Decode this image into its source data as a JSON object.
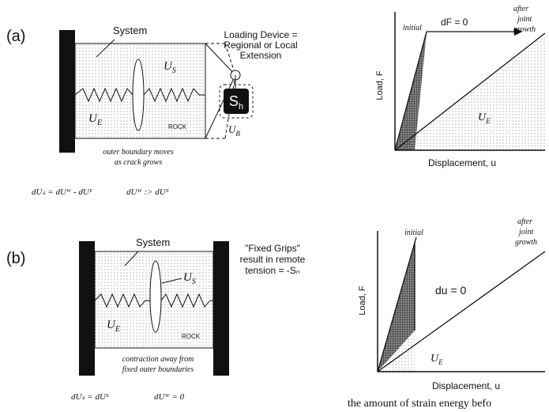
{
  "panel_a": {
    "label": "(a)",
    "system": "System",
    "us": {
      "base": "U",
      "sub": "S"
    },
    "ue": {
      "base": "U",
      "sub": "E"
    },
    "rock": "ROCK",
    "boundary_note": [
      "outer boundary moves",
      "as crack grows"
    ],
    "loading_device": [
      "Loading Device =",
      "Regional or Local",
      "Extension"
    ],
    "weight": {
      "base": "S",
      "sub": "h"
    },
    "uw": {
      "base": "U",
      "sub": "B"
    },
    "equation_1": "dUₛ = dUᵂ - dUᴱ",
    "equation_2": "dUᵂ :> dUᴱ",
    "graph": {
      "y_label": "Load, F",
      "x_label": "Displacement, u",
      "initial": "initial",
      "condition": "dF = 0",
      "after": [
        "after",
        "joint",
        "growth"
      ],
      "area": {
        "base": "U",
        "sub": "E"
      }
    }
  },
  "panel_b": {
    "label": "(b)",
    "system": "System",
    "us": {
      "base": "U",
      "sub": "S"
    },
    "ue": {
      "base": "U",
      "sub": "E"
    },
    "rock": "ROCK",
    "grips_note": [
      "\"Fixed Grips\"",
      "result in remote",
      "tension = -Sₙ"
    ],
    "boundary_note": [
      "contraction away from",
      "fixed outer boundaries"
    ],
    "equation_1": "dUₛ = dUᴱ",
    "equation_2": "dUᵂ = 0",
    "graph": {
      "y_label": "Load, F",
      "x_label": "Displacement, u",
      "initial": "initial",
      "condition": "du = 0",
      "after": [
        "after",
        "joint",
        "growth"
      ],
      "area": {
        "base": "U",
        "sub": "E"
      }
    }
  },
  "caption_fragment": "the amount of strain energy befo"
}
